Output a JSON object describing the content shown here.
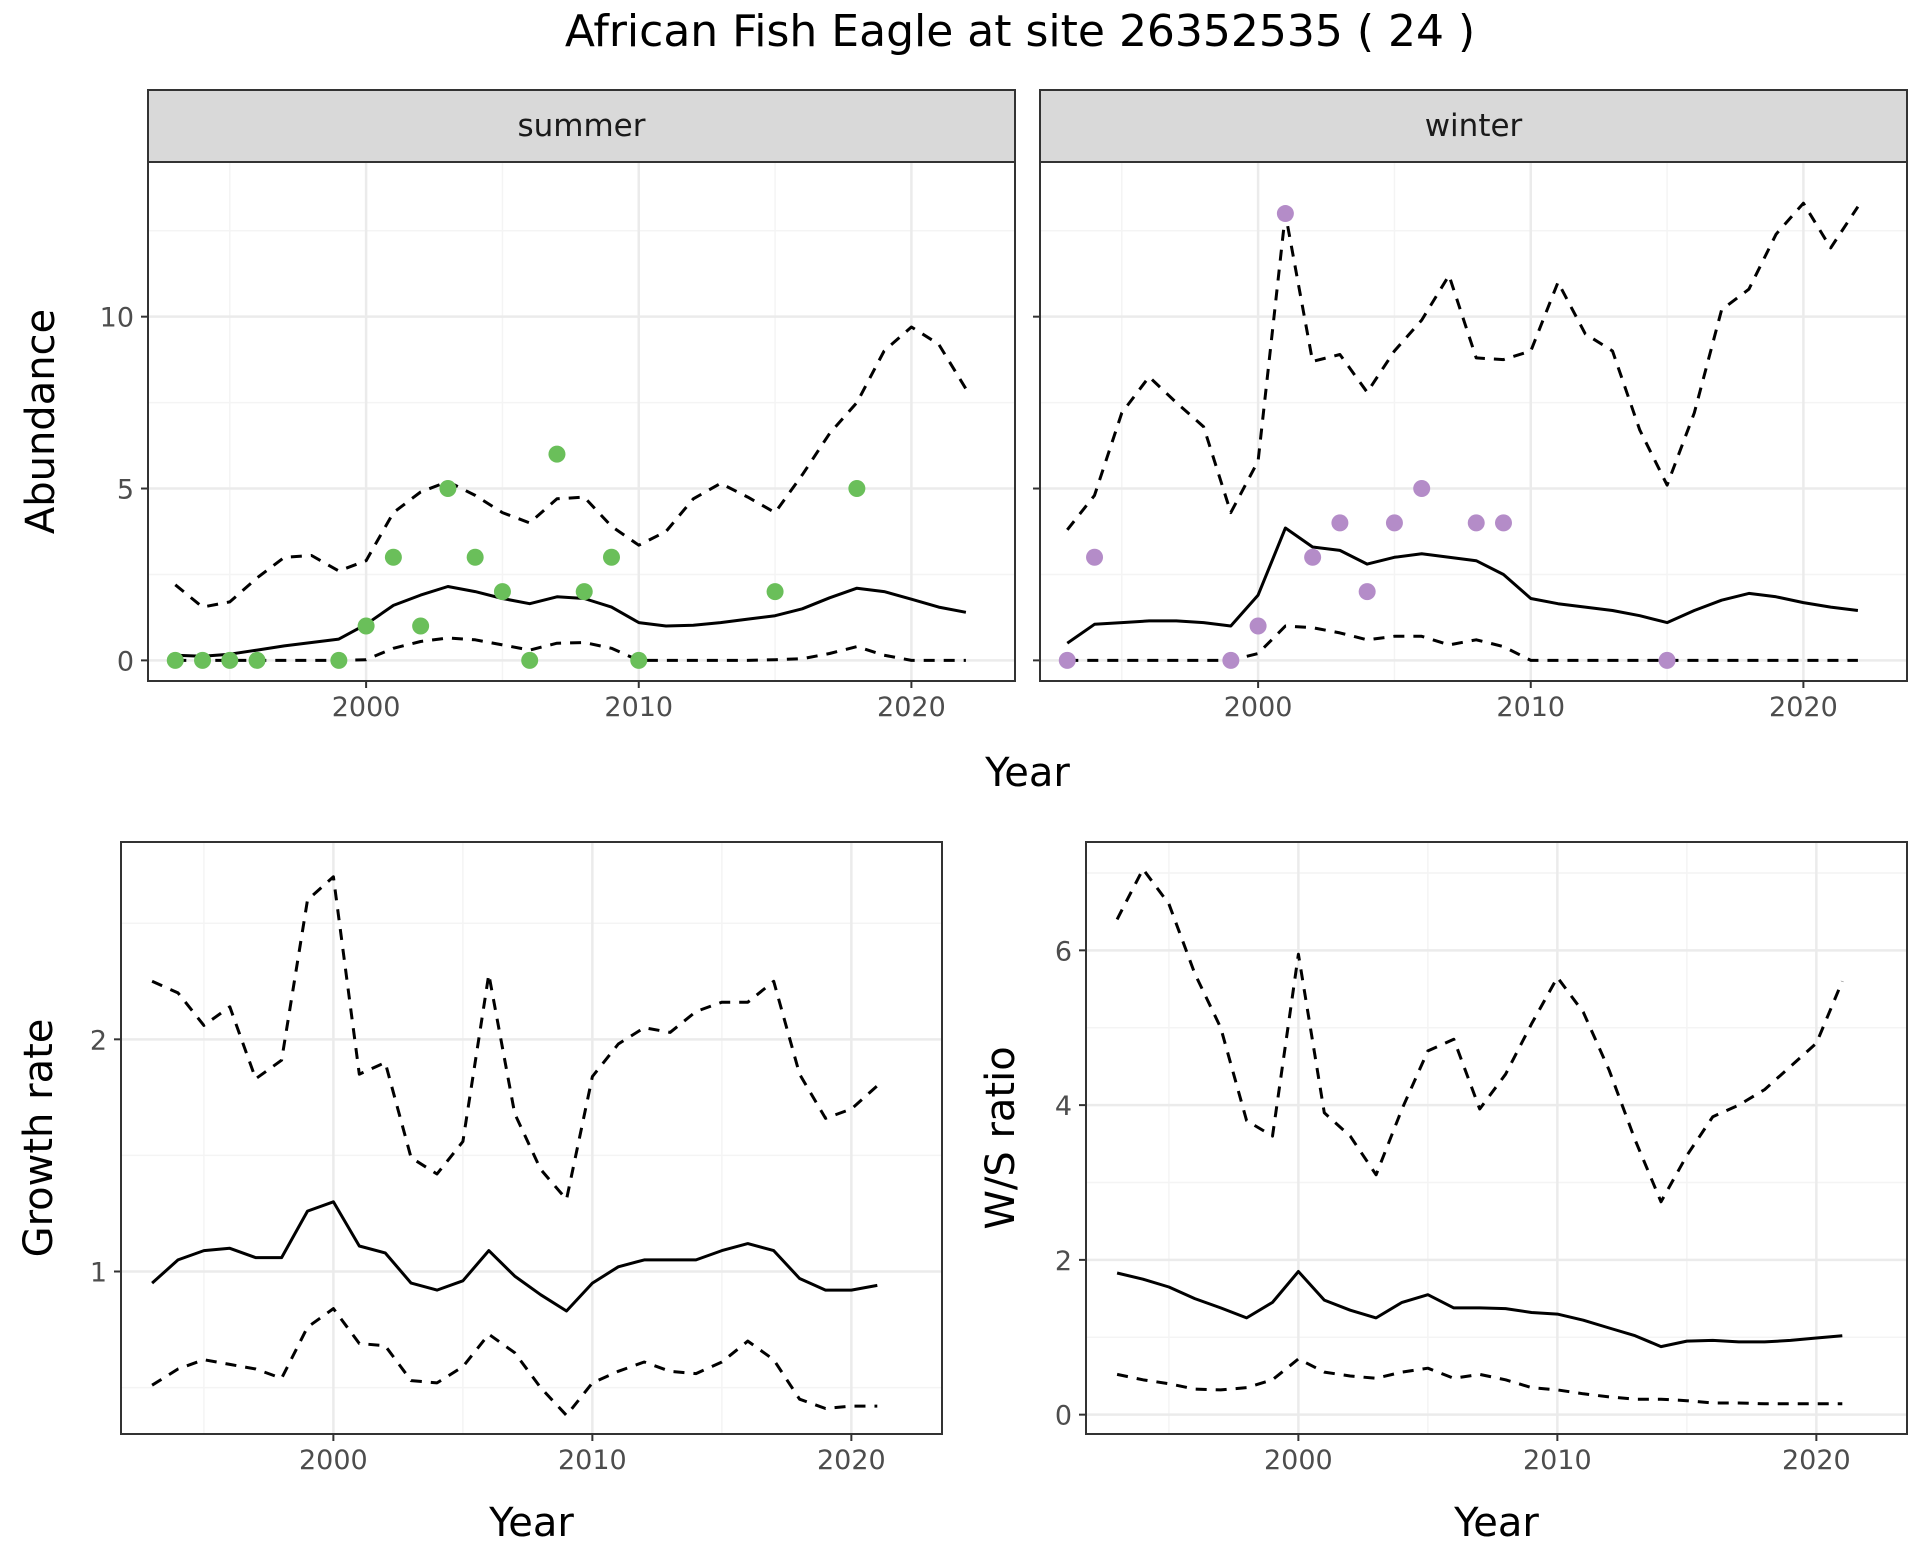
{
  "title": "African Fish Eagle at site 26352535 ( 24 )",
  "colors": {
    "summer_points": "#6abf5a",
    "winter_points": "#b48cc8",
    "line": "#000000",
    "strip_fill": "#d9d9d9",
    "panel_border": "#333333",
    "grid_major": "#ebebeb",
    "grid_minor": "#f4f4f4",
    "tick_label": "#4d4d4d"
  },
  "chart_data": [
    {
      "id": "abundance",
      "type": "line",
      "facets": [
        "summer",
        "winter"
      ],
      "xlabel": "Year",
      "ylabel": "Abundance",
      "xlim": [
        1992,
        2023.8
      ],
      "ylim": [
        -0.6,
        14.5
      ],
      "xticks": [
        2000,
        2010,
        2020
      ],
      "yticks": [
        0,
        5,
        10
      ],
      "grid": true,
      "panels": [
        {
          "facet": "summer",
          "points": {
            "x": [
              1993,
              1994,
              1995,
              1996,
              1999,
              2000,
              2001,
              2002,
              2003,
              2004,
              2005,
              2006,
              2007,
              2008,
              2009,
              2010,
              2015,
              2018
            ],
            "y": [
              0,
              0,
              0,
              0,
              0,
              1,
              3,
              1,
              5,
              3,
              2,
              0,
              6,
              2,
              3,
              0,
              2,
              5
            ]
          },
          "mean": {
            "x": [
              1993,
              1994,
              1995,
              1996,
              1997,
              1998,
              1999,
              2000,
              2001,
              2002,
              2003,
              2004,
              2005,
              2006,
              2007,
              2008,
              2009,
              2010,
              2011,
              2012,
              2013,
              2014,
              2015,
              2016,
              2017,
              2018,
              2019,
              2020,
              2021,
              2022
            ],
            "y": [
              0.15,
              0.12,
              0.18,
              0.3,
              0.42,
              0.52,
              0.62,
              1.05,
              1.6,
              1.9,
              2.15,
              2.0,
              1.8,
              1.65,
              1.85,
              1.8,
              1.55,
              1.1,
              1.0,
              1.02,
              1.1,
              1.2,
              1.3,
              1.5,
              1.82,
              2.1,
              2.0,
              1.78,
              1.55,
              1.4
            ]
          },
          "upper": {
            "x": [
              1993,
              1994,
              1995,
              1996,
              1997,
              1998,
              1999,
              2000,
              2001,
              2002,
              2003,
              2004,
              2005,
              2006,
              2007,
              2008,
              2009,
              2010,
              2011,
              2012,
              2013,
              2014,
              2015,
              2016,
              2017,
              2018,
              2019,
              2020,
              2021,
              2022
            ],
            "y": [
              2.2,
              1.55,
              1.7,
              2.4,
              3.0,
              3.05,
              2.6,
              2.9,
              4.3,
              4.9,
              5.2,
              4.8,
              4.3,
              4.0,
              4.7,
              4.75,
              3.9,
              3.35,
              3.75,
              4.7,
              5.15,
              4.75,
              4.3,
              5.4,
              6.6,
              7.5,
              9.0,
              9.7,
              9.2,
              7.9
            ]
          },
          "lower": {
            "x": [
              1993,
              1994,
              1995,
              1996,
              1997,
              1998,
              1999,
              2000,
              2001,
              2002,
              2003,
              2004,
              2005,
              2006,
              2007,
              2008,
              2009,
              2010,
              2011,
              2012,
              2013,
              2014,
              2015,
              2016,
              2017,
              2018,
              2019,
              2020,
              2021,
              2022
            ],
            "y": [
              0,
              0,
              0,
              0,
              0,
              0,
              0,
              0.02,
              0.35,
              0.55,
              0.65,
              0.6,
              0.45,
              0.3,
              0.5,
              0.52,
              0.35,
              0,
              0,
              0,
              0,
              0,
              0.02,
              0.05,
              0.2,
              0.4,
              0.15,
              0,
              0,
              0
            ]
          }
        },
        {
          "facet": "winter",
          "points": {
            "x": [
              1993,
              1994,
              1999,
              2000,
              2001,
              2002,
              2003,
              2004,
              2005,
              2006,
              2008,
              2009,
              2015
            ],
            "y": [
              0,
              3,
              0,
              1,
              13,
              3,
              4,
              2,
              4,
              5,
              4,
              4,
              0
            ]
          },
          "mean": {
            "x": [
              1993,
              1994,
              1995,
              1996,
              1997,
              1998,
              1999,
              2000,
              2001,
              2002,
              2003,
              2004,
              2005,
              2006,
              2007,
              2008,
              2009,
              2010,
              2011,
              2012,
              2013,
              2014,
              2015,
              2016,
              2017,
              2018,
              2019,
              2020,
              2021,
              2022
            ],
            "y": [
              0.5,
              1.05,
              1.1,
              1.15,
              1.15,
              1.1,
              1.0,
              1.9,
              3.85,
              3.3,
              3.2,
              2.8,
              3.0,
              3.1,
              3.0,
              2.9,
              2.5,
              1.8,
              1.65,
              1.55,
              1.45,
              1.3,
              1.1,
              1.45,
              1.75,
              1.95,
              1.85,
              1.68,
              1.55,
              1.45
            ]
          },
          "upper": {
            "x": [
              1993,
              1994,
              1995,
              1996,
              1997,
              1998,
              1999,
              2000,
              2001,
              2002,
              2003,
              2004,
              2005,
              2006,
              2007,
              2008,
              2009,
              2010,
              2011,
              2012,
              2013,
              2014,
              2015,
              2016,
              2017,
              2018,
              2019,
              2020,
              2021,
              2022
            ],
            "y": [
              3.8,
              4.8,
              7.2,
              8.25,
              7.5,
              6.8,
              4.3,
              5.8,
              13.0,
              8.7,
              8.9,
              7.8,
              9.0,
              9.9,
              11.2,
              8.8,
              8.75,
              9.0,
              11.0,
              9.5,
              9.0,
              6.7,
              5.1,
              7.2,
              10.2,
              10.8,
              12.4,
              13.3,
              12.0,
              13.2
            ]
          },
          "lower": {
            "x": [
              1993,
              1994,
              1995,
              1996,
              1997,
              1998,
              1999,
              2000,
              2001,
              2002,
              2003,
              2004,
              2005,
              2006,
              2007,
              2008,
              2009,
              2010,
              2011,
              2012,
              2013,
              2014,
              2015,
              2016,
              2017,
              2018,
              2019,
              2020,
              2021,
              2022
            ],
            "y": [
              0,
              0,
              0,
              0,
              0,
              0,
              0,
              0.2,
              1.0,
              0.95,
              0.8,
              0.6,
              0.7,
              0.7,
              0.45,
              0.6,
              0.4,
              0,
              0,
              0,
              0,
              0,
              0,
              0,
              0,
              0,
              0,
              0,
              0,
              0
            ]
          }
        }
      ]
    },
    {
      "id": "growth",
      "type": "line",
      "xlabel": "Year",
      "ylabel": "Growth rate",
      "xlim": [
        1991.8,
        2023.5
      ],
      "ylim": [
        0.3,
        2.85
      ],
      "xticks": [
        2000,
        2010,
        2020
      ],
      "yticks": [
        1,
        2
      ],
      "grid": true,
      "mean": {
        "x": [
          1993,
          1994,
          1995,
          1996,
          1997,
          1998,
          1999,
          2000,
          2001,
          2002,
          2003,
          2004,
          2005,
          2006,
          2007,
          2008,
          2009,
          2010,
          2011,
          2012,
          2013,
          2014,
          2015,
          2016,
          2017,
          2018,
          2019,
          2020,
          2021
        ],
        "y": [
          0.95,
          1.05,
          1.09,
          1.1,
          1.06,
          1.06,
          1.26,
          1.3,
          1.11,
          1.08,
          0.95,
          0.92,
          0.96,
          1.09,
          0.98,
          0.9,
          0.83,
          0.95,
          1.02,
          1.05,
          1.05,
          1.05,
          1.09,
          1.12,
          1.09,
          0.97,
          0.92,
          0.92,
          0.94
        ]
      },
      "upper": {
        "x": [
          1993,
          1994,
          1995,
          1996,
          1997,
          1998,
          1999,
          2000,
          2001,
          2002,
          2003,
          2004,
          2005,
          2006,
          2007,
          2008,
          2009,
          2010,
          2011,
          2012,
          2013,
          2014,
          2015,
          2016,
          2017,
          2018,
          2019,
          2020,
          2021
        ],
        "y": [
          2.25,
          2.2,
          2.06,
          2.14,
          1.83,
          1.91,
          2.6,
          2.7,
          1.85,
          1.9,
          1.49,
          1.42,
          1.56,
          2.28,
          1.68,
          1.44,
          1.31,
          1.84,
          1.98,
          2.05,
          2.03,
          2.12,
          2.16,
          2.16,
          2.25,
          1.85,
          1.66,
          1.7,
          1.8
        ]
      },
      "lower": {
        "x": [
          1993,
          1994,
          1995,
          1996,
          1997,
          1998,
          1999,
          2000,
          2001,
          2002,
          2003,
          2004,
          2005,
          2006,
          2007,
          2008,
          2009,
          2010,
          2011,
          2012,
          2013,
          2014,
          2015,
          2016,
          2017,
          2018,
          2019,
          2020,
          2021
        ],
        "y": [
          0.51,
          0.58,
          0.62,
          0.6,
          0.58,
          0.54,
          0.76,
          0.84,
          0.69,
          0.68,
          0.53,
          0.52,
          0.59,
          0.73,
          0.65,
          0.5,
          0.38,
          0.52,
          0.57,
          0.61,
          0.57,
          0.56,
          0.61,
          0.7,
          0.62,
          0.45,
          0.41,
          0.42,
          0.42
        ]
      }
    },
    {
      "id": "ratio",
      "type": "line",
      "xlabel": "Year",
      "ylabel": "W/S ratio",
      "xlim": [
        1991.8,
        2023.5
      ],
      "ylim": [
        -0.25,
        7.4
      ],
      "xticks": [
        2000,
        2010,
        2020
      ],
      "yticks": [
        0,
        2,
        4,
        6
      ],
      "grid": true,
      "mean": {
        "x": [
          1993,
          1994,
          1995,
          1996,
          1997,
          1998,
          1999,
          2000,
          2001,
          2002,
          2003,
          2004,
          2005,
          2006,
          2007,
          2008,
          2009,
          2010,
          2011,
          2012,
          2013,
          2014,
          2015,
          2016,
          2017,
          2018,
          2019,
          2020,
          2021
        ],
        "y": [
          1.83,
          1.75,
          1.65,
          1.5,
          1.38,
          1.25,
          1.45,
          1.85,
          1.48,
          1.35,
          1.25,
          1.45,
          1.55,
          1.38,
          1.38,
          1.37,
          1.32,
          1.3,
          1.22,
          1.12,
          1.02,
          0.88,
          0.95,
          0.96,
          0.94,
          0.94,
          0.96,
          0.99,
          1.02
        ]
      },
      "upper": {
        "x": [
          1993,
          1994,
          1995,
          1996,
          1997,
          1998,
          1999,
          2000,
          2001,
          2002,
          2003,
          2004,
          2005,
          2006,
          2007,
          2008,
          2009,
          2010,
          2011,
          2012,
          2013,
          2014,
          2015,
          2016,
          2017,
          2018,
          2019,
          2020,
          2021
        ],
        "y": [
          6.4,
          7.05,
          6.6,
          5.7,
          5.0,
          3.8,
          3.6,
          5.95,
          3.9,
          3.6,
          3.1,
          3.95,
          4.7,
          4.85,
          3.95,
          4.4,
          5.05,
          5.65,
          5.2,
          4.45,
          3.55,
          2.75,
          3.35,
          3.85,
          4.0,
          4.2,
          4.5,
          4.8,
          5.6
        ]
      },
      "lower": {
        "x": [
          1993,
          1994,
          1995,
          1996,
          1997,
          1998,
          1999,
          2000,
          2001,
          2002,
          2003,
          2004,
          2005,
          2006,
          2007,
          2008,
          2009,
          2010,
          2011,
          2012,
          2013,
          2014,
          2015,
          2016,
          2017,
          2018,
          2019,
          2020,
          2021
        ],
        "y": [
          0.52,
          0.45,
          0.4,
          0.33,
          0.32,
          0.35,
          0.45,
          0.72,
          0.55,
          0.5,
          0.47,
          0.55,
          0.6,
          0.47,
          0.52,
          0.45,
          0.35,
          0.32,
          0.27,
          0.23,
          0.2,
          0.2,
          0.18,
          0.15,
          0.15,
          0.14,
          0.14,
          0.14,
          0.14
        ]
      }
    }
  ]
}
